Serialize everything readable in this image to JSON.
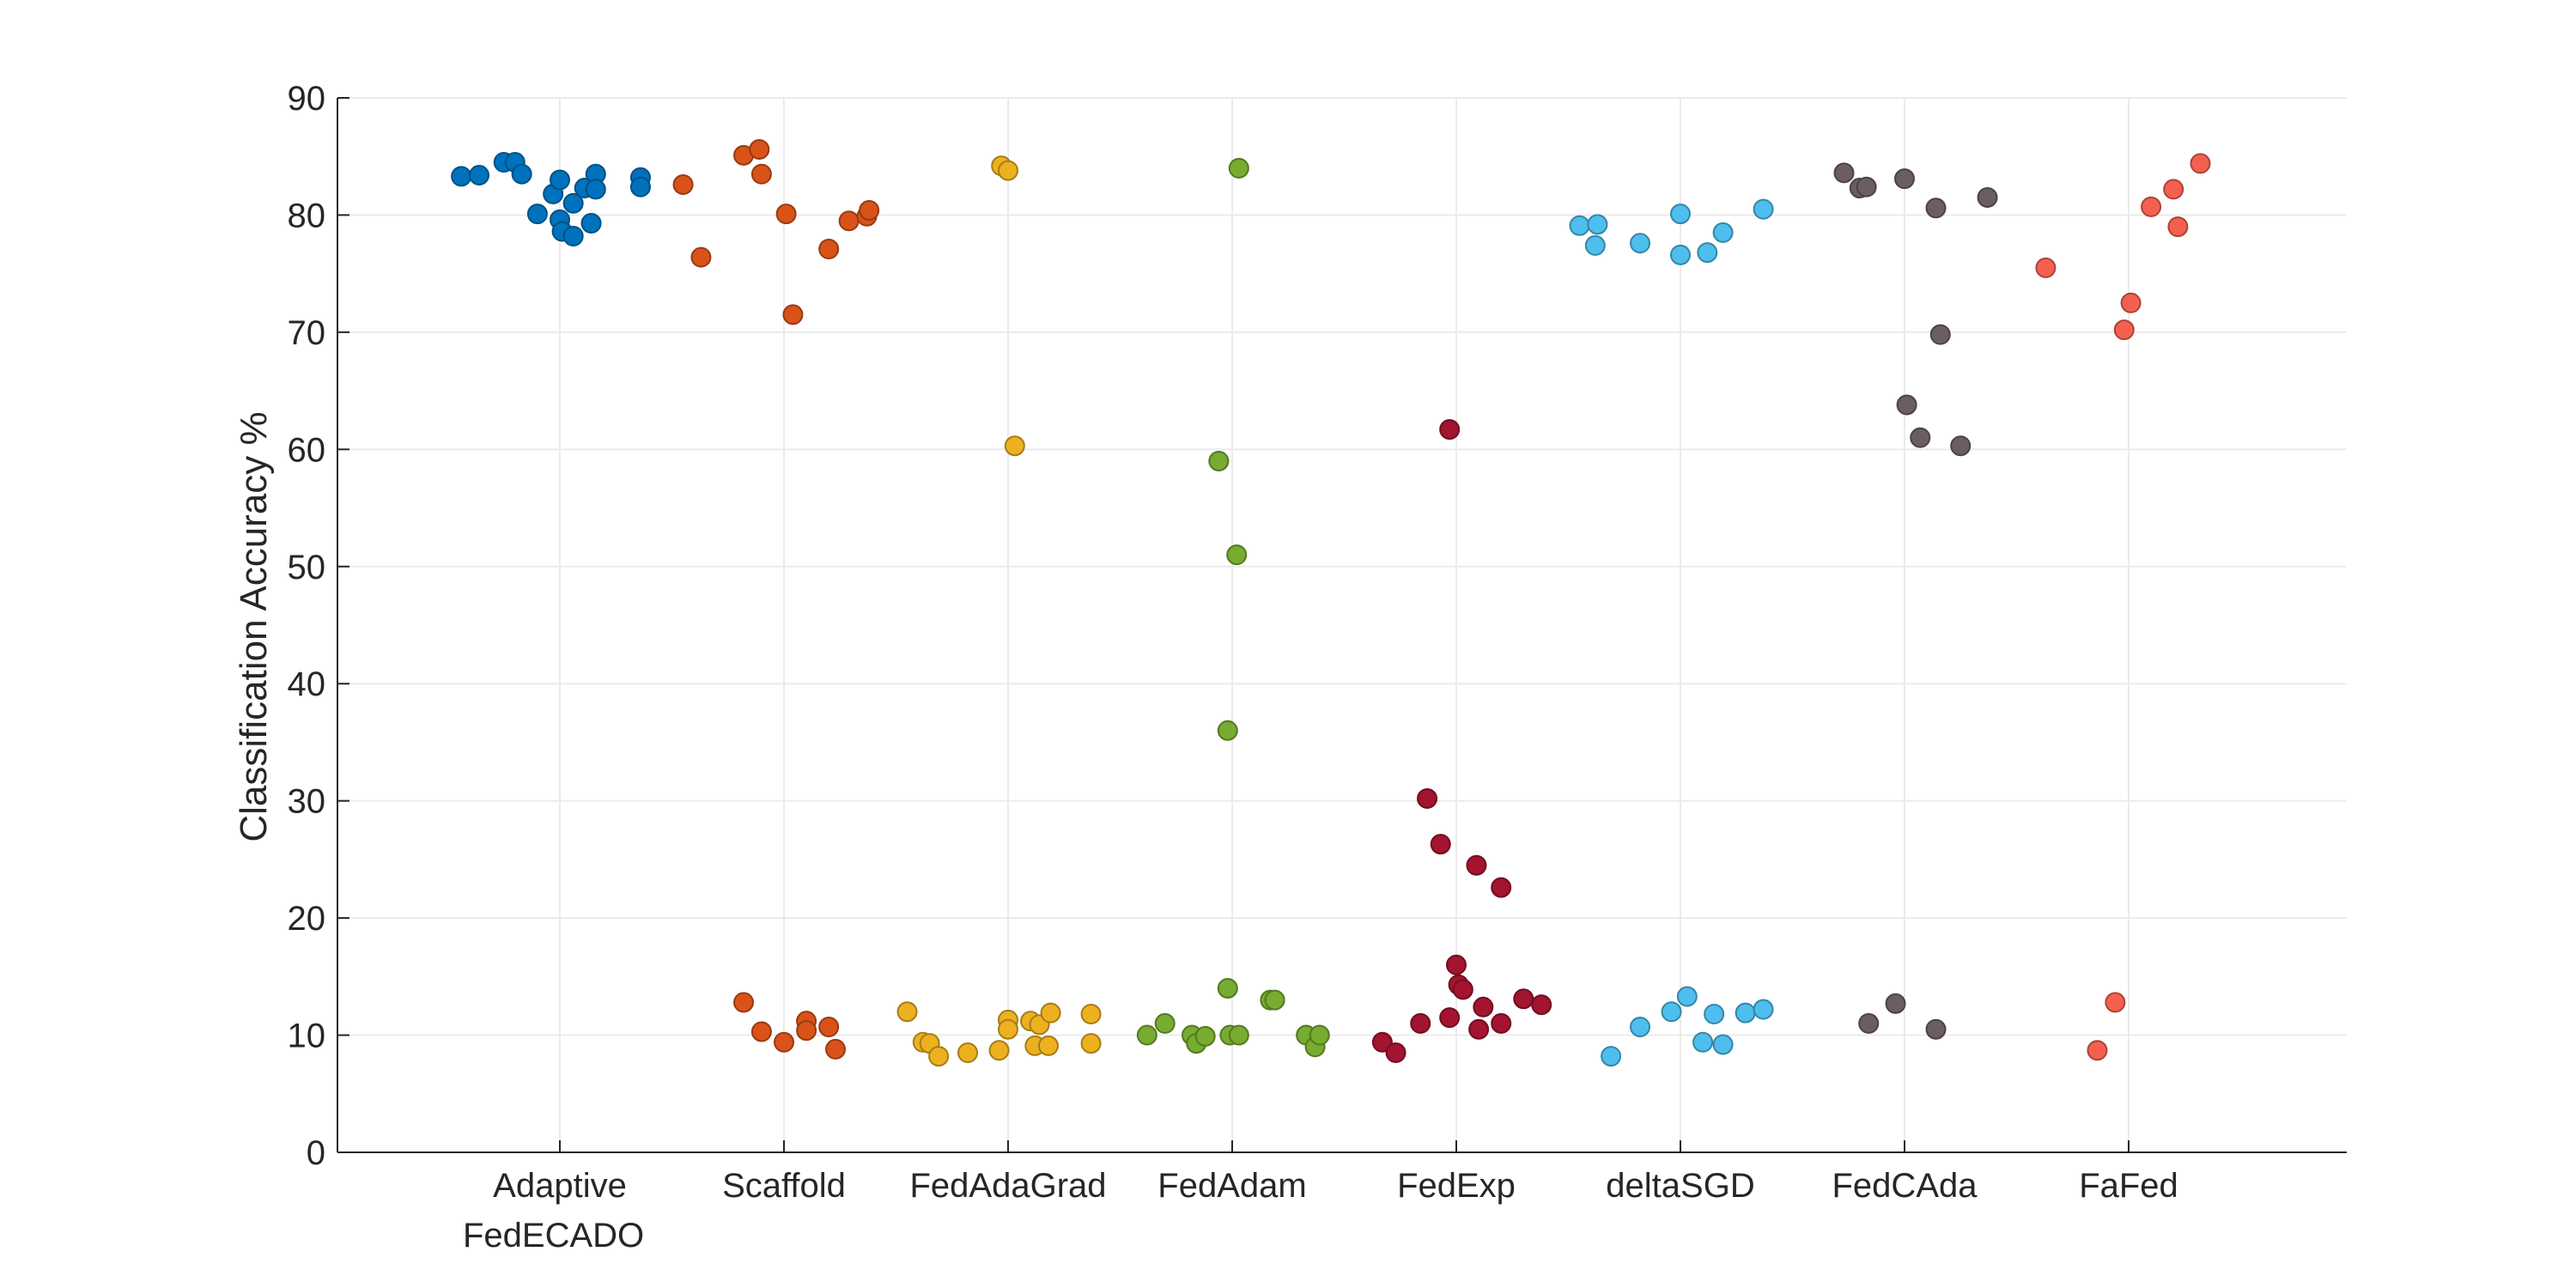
{
  "chart_data": {
    "type": "scatter",
    "title": "",
    "xlabel": "",
    "ylabel": "Classification Accuracy %",
    "ylim": [
      0,
      90
    ],
    "yticks": [
      0,
      10,
      20,
      30,
      40,
      50,
      60,
      70,
      80,
      90
    ],
    "grid": true,
    "categories": [
      {
        "lines": [
          "Adaptive",
          "FedECADO"
        ]
      },
      {
        "lines": [
          "Scaffold"
        ]
      },
      {
        "lines": [
          "FedAdaGrad"
        ]
      },
      {
        "lines": [
          "FedAdam"
        ]
      },
      {
        "lines": [
          "FedExp"
        ]
      },
      {
        "lines": [
          "deltaSGD"
        ]
      },
      {
        "lines": [
          "FedCAda"
        ]
      },
      {
        "lines": [
          "FaFed"
        ]
      }
    ],
    "series": [
      {
        "name": "Adaptive FedECADO",
        "color": "#0072BD",
        "points": [
          [
            -0.44,
            83.3
          ],
          [
            -0.36,
            83.4
          ],
          [
            -0.25,
            84.5
          ],
          [
            -0.2,
            84.5
          ],
          [
            -0.17,
            83.5
          ],
          [
            -0.1,
            80.1
          ],
          [
            -0.03,
            81.8
          ],
          [
            0,
            83
          ],
          [
            0,
            79.6
          ],
          [
            0.01,
            78.6
          ],
          [
            0.06,
            81
          ],
          [
            0.06,
            78.2
          ],
          [
            0.11,
            82.3
          ],
          [
            0.14,
            79.3
          ],
          [
            0.16,
            83.5
          ],
          [
            0.16,
            82.2
          ],
          [
            0.36,
            83.2
          ],
          [
            0.36,
            82.4
          ]
        ]
      },
      {
        "name": "Scaffold",
        "color": "#D95319",
        "points": [
          [
            -0.45,
            82.6
          ],
          [
            -0.37,
            76.4
          ],
          [
            -0.18,
            85.1
          ],
          [
            -0.11,
            85.6
          ],
          [
            -0.1,
            83.5
          ],
          [
            0.01,
            80.1
          ],
          [
            0.04,
            71.5
          ],
          [
            0.2,
            77.1
          ],
          [
            0.29,
            79.5
          ],
          [
            0.37,
            79.9
          ],
          [
            0.38,
            80.4
          ],
          [
            -0.18,
            12.8
          ],
          [
            -0.1,
            10.3
          ],
          [
            0,
            9.4
          ],
          [
            0.1,
            11.2
          ],
          [
            0.1,
            10.4
          ],
          [
            0.2,
            10.7
          ],
          [
            0.23,
            8.8
          ]
        ]
      },
      {
        "name": "FedAdaGrad",
        "color": "#EDB120",
        "points": [
          [
            -0.45,
            12
          ],
          [
            -0.38,
            9.4
          ],
          [
            -0.35,
            9.3
          ],
          [
            -0.31,
            8.2
          ],
          [
            -0.18,
            8.5
          ],
          [
            -0.04,
            8.7
          ],
          [
            -0.03,
            84.2
          ],
          [
            0,
            83.8
          ],
          [
            0.03,
            60.3
          ],
          [
            0,
            11.3
          ],
          [
            0,
            10.5
          ],
          [
            0.1,
            11.2
          ],
          [
            0.12,
            9.1
          ],
          [
            0.14,
            10.9
          ],
          [
            0.19,
            11.9
          ],
          [
            0.18,
            9.1
          ],
          [
            0.37,
            11.8
          ],
          [
            0.37,
            9.3
          ]
        ]
      },
      {
        "name": "FedAdam",
        "color": "#77AC30",
        "points": [
          [
            -0.38,
            10
          ],
          [
            -0.3,
            11
          ],
          [
            -0.18,
            10
          ],
          [
            -0.16,
            9.3
          ],
          [
            -0.12,
            9.9
          ],
          [
            -0.06,
            59
          ],
          [
            -0.02,
            36
          ],
          [
            -0.02,
            14
          ],
          [
            -0.01,
            10
          ],
          [
            0.02,
            51
          ],
          [
            0.03,
            84
          ],
          [
            0.03,
            10
          ],
          [
            0.17,
            13
          ],
          [
            0.19,
            13
          ],
          [
            0.33,
            10
          ],
          [
            0.37,
            9
          ],
          [
            0.39,
            10
          ]
        ]
      },
      {
        "name": "FedExp",
        "color": "#A2142F",
        "points": [
          [
            -0.33,
            9.4
          ],
          [
            -0.27,
            8.5
          ],
          [
            -0.16,
            11
          ],
          [
            -0.13,
            30.2
          ],
          [
            -0.07,
            26.3
          ],
          [
            -0.03,
            61.7
          ],
          [
            -0.03,
            11.5
          ],
          [
            0,
            16
          ],
          [
            0.01,
            14.3
          ],
          [
            0.03,
            13.9
          ],
          [
            0.09,
            24.5
          ],
          [
            0.1,
            10.5
          ],
          [
            0.12,
            12.4
          ],
          [
            0.2,
            11
          ],
          [
            0.2,
            22.6
          ],
          [
            0.3,
            13.1
          ],
          [
            0.38,
            12.6
          ]
        ]
      },
      {
        "name": "deltaSGD",
        "color": "#4DBEEE",
        "points": [
          [
            -0.45,
            79.1
          ],
          [
            -0.37,
            79.2
          ],
          [
            -0.38,
            77.4
          ],
          [
            -0.18,
            77.6
          ],
          [
            -0.31,
            8.2
          ],
          [
            -0.18,
            10.7
          ],
          [
            -0.04,
            12
          ],
          [
            0,
            80.1
          ],
          [
            0,
            76.6
          ],
          [
            0.03,
            13.3
          ],
          [
            0.1,
            9.4
          ],
          [
            0.12,
            76.8
          ],
          [
            0.15,
            11.8
          ],
          [
            0.19,
            78.5
          ],
          [
            0.19,
            9.2
          ],
          [
            0.29,
            11.9
          ],
          [
            0.37,
            80.5
          ],
          [
            0.37,
            12.2
          ]
        ]
      },
      {
        "name": "FedCAda",
        "color": "#6B5E62",
        "points": [
          [
            -0.27,
            83.6
          ],
          [
            -0.2,
            82.3
          ],
          [
            -0.17,
            82.4
          ],
          [
            -0.16,
            11
          ],
          [
            -0.04,
            12.7
          ],
          [
            0,
            83.1
          ],
          [
            0.01,
            63.8
          ],
          [
            0.07,
            61
          ],
          [
            0.14,
            80.6
          ],
          [
            0.14,
            10.5
          ],
          [
            0.16,
            69.8
          ],
          [
            0.25,
            60.3
          ],
          [
            0.37,
            81.5
          ]
        ]
      },
      {
        "name": "FaFed",
        "color": "#F4604F",
        "points": [
          [
            -0.37,
            75.5
          ],
          [
            -0.14,
            8.7
          ],
          [
            -0.06,
            12.8
          ],
          [
            -0.02,
            70.2
          ],
          [
            0.01,
            72.5
          ],
          [
            0.1,
            80.7
          ],
          [
            0.2,
            82.2
          ],
          [
            0.22,
            79
          ],
          [
            0.32,
            84.4
          ]
        ]
      }
    ]
  }
}
